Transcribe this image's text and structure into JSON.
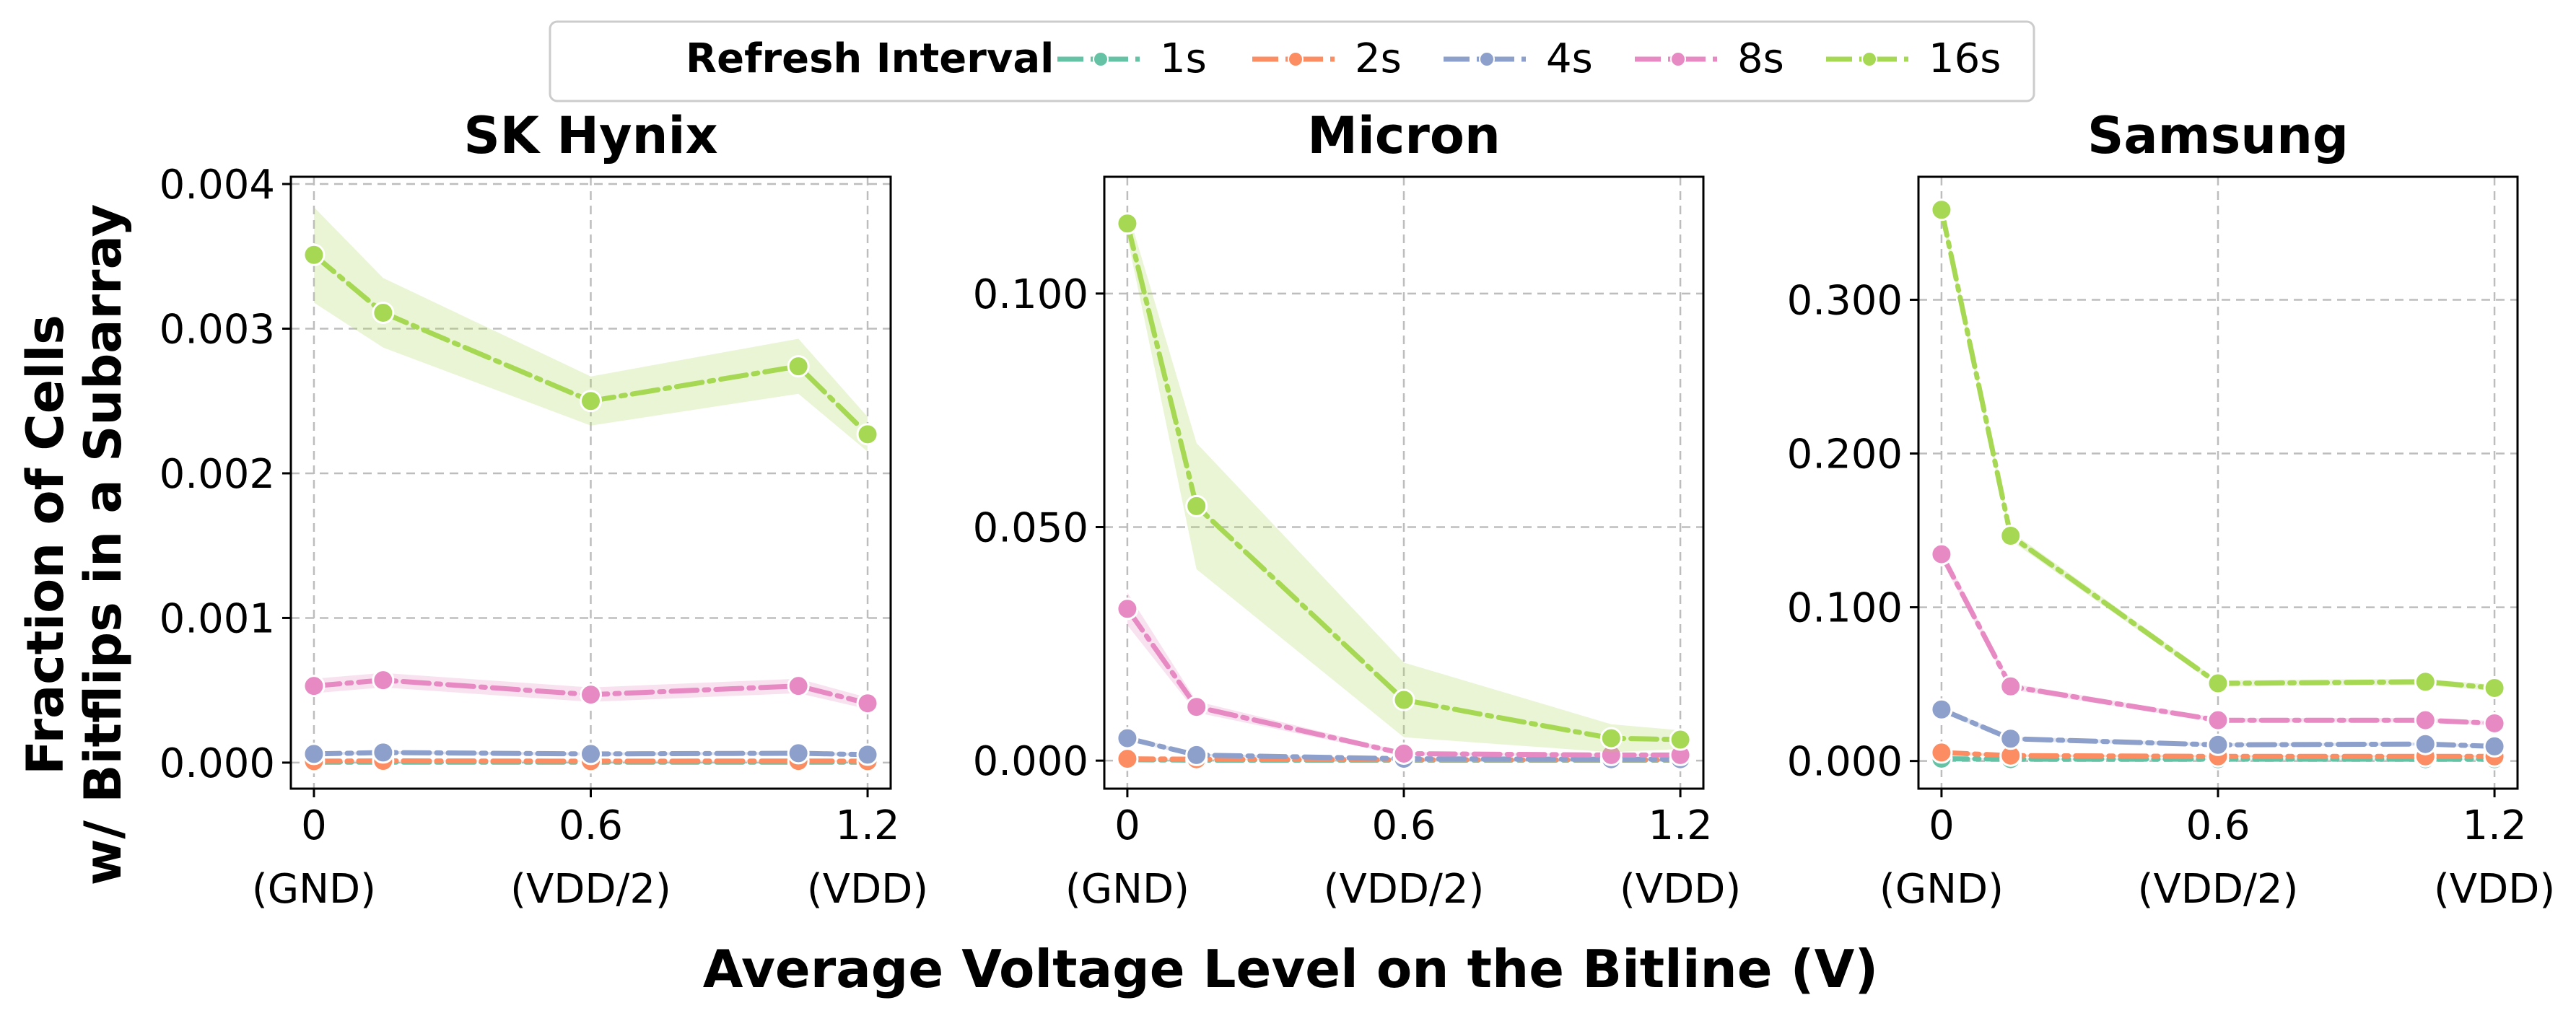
{
  "chart_data": {
    "type": "line",
    "legend": {
      "title": "Refresh Interval",
      "placement": "top-center",
      "entries": [
        "1s",
        "2s",
        "4s",
        "8s",
        "16s"
      ]
    },
    "colors": [
      "#66c2a5",
      "#fc8d62",
      "#8da0cb",
      "#e78ac3",
      "#a6d854"
    ],
    "dashes": [
      "dashdot",
      "dashdot",
      "dashdot",
      "dashdot",
      "dashdot"
    ],
    "ylabel_lines": [
      "Fraction of Cells",
      "w/ Bitflips in a Subarray"
    ],
    "xlabel": "Average Voltage Level on the Bitline (V)",
    "x": [
      0,
      0.15,
      0.6,
      1.05,
      1.2
    ],
    "xticks": [
      {
        "value": 0,
        "lines": [
          "0",
          "(GND)"
        ]
      },
      {
        "value": 0.6,
        "lines": [
          "0.6",
          "(VDD/2)"
        ]
      },
      {
        "value": 1.2,
        "lines": [
          "1.2",
          "(VDD)"
        ]
      }
    ],
    "xlim": [
      -0.05,
      1.25
    ],
    "grid": true,
    "panels": [
      {
        "title": "SK Hynix",
        "ylim": [
          -0.00018,
          0.00405
        ],
        "yticks": [
          0,
          0.001,
          0.002,
          0.003,
          0.004
        ],
        "ytick_labels": [
          "0.000",
          "0.001",
          "0.002",
          "0.003",
          "0.004"
        ],
        "series": [
          {
            "name": "1s",
            "values": [
              3e-06,
              3e-06,
              3e-06,
              3e-06,
              3e-06
            ],
            "band": [
              0,
              0,
              0,
              0,
              0
            ]
          },
          {
            "name": "2s",
            "values": [
              1e-05,
              1.2e-05,
              1e-05,
              1.1e-05,
              1e-05
            ],
            "band": [
              3e-06,
              3e-06,
              3e-06,
              3e-06,
              3e-06
            ]
          },
          {
            "name": "4s",
            "values": [
              6e-05,
              7e-05,
              6e-05,
              6.5e-05,
              5.5e-05
            ],
            "band": [
              1e-05,
              1e-05,
              1e-05,
              1e-05,
              1e-05
            ]
          },
          {
            "name": "8s",
            "values": [
              0.00053,
              0.00057,
              0.00047,
              0.00053,
              0.00041
            ],
            "band": [
              5e-05,
              5e-05,
              5e-05,
              5e-05,
              4e-05
            ]
          },
          {
            "name": "16s",
            "values": [
              0.00351,
              0.00311,
              0.0025,
              0.00274,
              0.00227
            ],
            "band": [
              0.00033,
              0.00024,
              0.00017,
              0.00019,
              0.00012
            ]
          }
        ]
      },
      {
        "title": "Micron",
        "ylim": [
          -0.006,
          0.125
        ],
        "yticks": [
          0,
          0.05,
          0.1
        ],
        "ytick_labels": [
          "0.000",
          "0.050",
          "0.100"
        ],
        "series": [
          {
            "name": "1s",
            "values": [
              0.0002,
              0.0001,
              0.0001,
              0.0001,
              0.0001
            ],
            "band": [
              0,
              0,
              0,
              0,
              0
            ]
          },
          {
            "name": "2s",
            "values": [
              0.0004,
              0.0003,
              0.0002,
              0.0002,
              0.0002
            ],
            "band": [
              0.0001,
              0.0001,
              0.0001,
              0.0001,
              0.0001
            ]
          },
          {
            "name": "4s",
            "values": [
              0.0048,
              0.0012,
              0.0004,
              0.0003,
              0.0003
            ],
            "band": [
              0.0006,
              0.0003,
              0.0001,
              0.0001,
              0.0001
            ]
          },
          {
            "name": "8s",
            "values": [
              0.0325,
              0.0115,
              0.0015,
              0.0012,
              0.0012
            ],
            "band": [
              0.0035,
              0.0012,
              0.0004,
              0.0003,
              0.0003
            ]
          },
          {
            "name": "16s",
            "values": [
              0.115,
              0.0545,
              0.013,
              0.0048,
              0.0045
            ],
            "band": [
              0.003,
              0.0135,
              0.008,
              0.003,
              0.002
            ]
          }
        ]
      },
      {
        "title": "Samsung",
        "ylim": [
          -0.018,
          0.38
        ],
        "yticks": [
          0,
          0.1,
          0.2,
          0.3
        ],
        "ytick_labels": [
          "0.000",
          "0.100",
          "0.200",
          "0.300"
        ],
        "series": [
          {
            "name": "1s",
            "values": [
              0.0015,
              0.0012,
              0.0012,
              0.0012,
              0.0012
            ],
            "band": [
              0.0005,
              0.0004,
              0.0004,
              0.0004,
              0.0004
            ]
          },
          {
            "name": "2s",
            "values": [
              0.0055,
              0.0035,
              0.003,
              0.003,
              0.003
            ],
            "band": [
              0.001,
              0.0008,
              0.0008,
              0.0008,
              0.0008
            ]
          },
          {
            "name": "4s",
            "values": [
              0.0335,
              0.0145,
              0.0105,
              0.011,
              0.0095
            ],
            "band": [
              0.002,
              0.0015,
              0.001,
              0.001,
              0.001
            ]
          },
          {
            "name": "8s",
            "values": [
              0.1345,
              0.0485,
              0.0265,
              0.0265,
              0.0245
            ],
            "band": [
              0.004,
              0.002,
              0.0015,
              0.0015,
              0.0015
            ]
          },
          {
            "name": "16s",
            "values": [
              0.3585,
              0.1465,
              0.0505,
              0.0515,
              0.0475
            ],
            "band": [
              0.005,
              0.003,
              0.002,
              0.002,
              0.002
            ]
          }
        ]
      }
    ]
  }
}
